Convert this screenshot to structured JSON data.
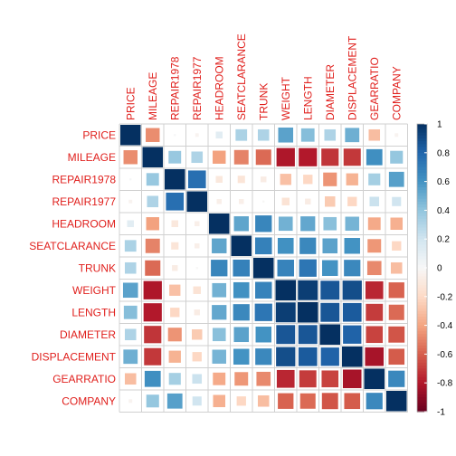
{
  "chart_data": {
    "type": "heatmap",
    "variables": [
      "PRICE",
      "MILEAGE",
      "REPAIR1978",
      "REPAIR1977",
      "HEADROOM",
      "SEATCLARANCE",
      "TRUNK",
      "WEIGHT",
      "LENGTH",
      "DIAMETER",
      "DISPLACEMENT",
      "GEARRATIO",
      "COMPANY"
    ],
    "matrix": [
      [
        1.0,
        -0.47,
        0.01,
        -0.03,
        0.11,
        0.32,
        0.31,
        0.54,
        0.43,
        0.31,
        0.49,
        -0.31,
        -0.03
      ],
      [
        -0.47,
        1.0,
        0.38,
        0.31,
        -0.41,
        -0.5,
        -0.57,
        -0.81,
        -0.8,
        -0.72,
        -0.71,
        0.62,
        0.39
      ],
      [
        0.01,
        0.38,
        1.0,
        0.76,
        -0.11,
        -0.13,
        -0.08,
        -0.3,
        -0.21,
        -0.45,
        -0.35,
        0.34,
        0.55
      ],
      [
        -0.03,
        0.31,
        0.76,
        1.0,
        -0.06,
        -0.06,
        -0.01,
        -0.14,
        -0.08,
        -0.26,
        -0.21,
        0.22,
        0.2
      ],
      [
        0.11,
        -0.41,
        -0.11,
        -0.06,
        1.0,
        0.53,
        0.66,
        0.48,
        0.52,
        0.42,
        0.47,
        -0.38,
        -0.36
      ],
      [
        0.32,
        -0.5,
        -0.13,
        -0.06,
        0.53,
        1.0,
        0.68,
        0.61,
        0.65,
        0.54,
        0.6,
        -0.44,
        -0.21
      ],
      [
        0.31,
        -0.57,
        -0.08,
        -0.01,
        0.66,
        0.68,
        1.0,
        0.67,
        0.73,
        0.6,
        0.65,
        -0.48,
        -0.31
      ],
      [
        0.54,
        -0.81,
        -0.3,
        -0.14,
        0.48,
        0.61,
        0.67,
        1.0,
        0.95,
        0.86,
        0.89,
        -0.76,
        -0.59
      ],
      [
        0.43,
        -0.8,
        -0.21,
        -0.08,
        0.52,
        0.65,
        0.73,
        0.95,
        1.0,
        0.86,
        0.84,
        -0.7,
        -0.57
      ],
      [
        0.31,
        -0.72,
        -0.45,
        -0.26,
        0.42,
        0.54,
        0.6,
        0.86,
        0.86,
        1.0,
        0.81,
        -0.68,
        -0.63
      ],
      [
        0.49,
        -0.71,
        -0.35,
        -0.21,
        0.47,
        0.6,
        0.65,
        0.89,
        0.84,
        0.81,
        1.0,
        -0.83,
        -0.61
      ],
      [
        -0.31,
        0.62,
        0.34,
        0.22,
        -0.38,
        -0.44,
        -0.48,
        -0.76,
        -0.7,
        -0.68,
        -0.83,
        1.0,
        0.65
      ],
      [
        -0.03,
        0.39,
        0.55,
        0.2,
        -0.36,
        -0.21,
        -0.31,
        -0.59,
        -0.57,
        -0.63,
        -0.61,
        0.65,
        1.0
      ]
    ],
    "colorbar": {
      "range": [
        -1,
        1
      ],
      "ticks": [
        "1",
        "0.8",
        "0.6",
        "0.4",
        "0.2",
        "0",
        "-0.2",
        "-0.4",
        "-0.6",
        "-0.8",
        "-1"
      ]
    },
    "colors": {
      "positive": "#053061",
      "negative": "#67001F",
      "neutral": "#F7F7F7",
      "label": "#e0201d",
      "grid": "#d0d0d0"
    },
    "method": "square",
    "grid": true
  }
}
